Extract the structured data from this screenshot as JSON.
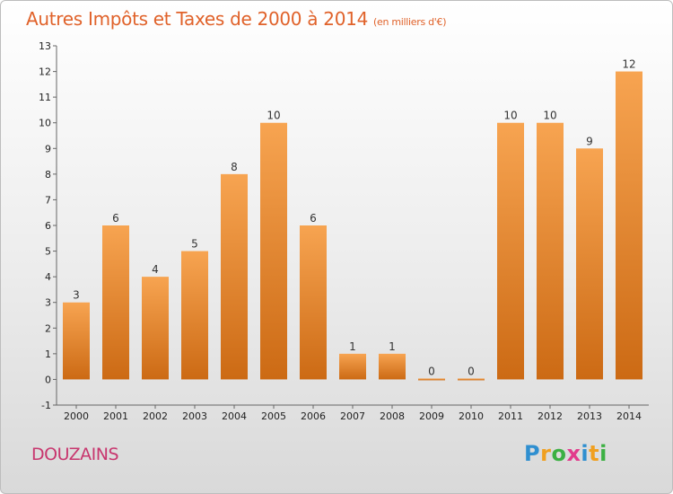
{
  "chart_data": {
    "type": "bar",
    "title": "Autres Impôts et Taxes de 2000 à 2014",
    "subtitle": "(en milliers d'€)",
    "categories": [
      "2000",
      "2001",
      "2002",
      "2003",
      "2004",
      "2005",
      "2006",
      "2007",
      "2008",
      "2009",
      "2010",
      "2011",
      "2012",
      "2013",
      "2014"
    ],
    "values": [
      3,
      6,
      4,
      5,
      8,
      10,
      6,
      1,
      1,
      0,
      0,
      10,
      10,
      9,
      12
    ],
    "ylim": [
      -1,
      13
    ],
    "yticks": [
      -1,
      0,
      1,
      2,
      3,
      4,
      5,
      6,
      7,
      8,
      9,
      10,
      11,
      12,
      13
    ],
    "bar_color_top": "#f7a451",
    "bar_color_bottom": "#cc6a14",
    "grid": false
  },
  "commune": "DOUZAINS",
  "logo": {
    "letters": [
      "P",
      "r",
      "o",
      "x",
      "i",
      "t",
      "i"
    ],
    "colors": [
      "#2f8fd0",
      "#f0a020",
      "#3cb043",
      "#e23c8c",
      "#2f8fd0",
      "#f0a020",
      "#3cb043"
    ]
  }
}
